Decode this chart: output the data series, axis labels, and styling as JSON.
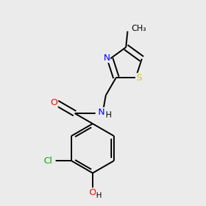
{
  "background_color": "#ebebeb",
  "bond_color": "#000000",
  "atom_colors": {
    "O": "#ff0000",
    "N": "#0000ff",
    "S": "#cccc00",
    "Cl": "#00aa00",
    "C": "#000000",
    "H": "#000000"
  },
  "figsize": [
    3.0,
    3.0
  ],
  "dpi": 100
}
